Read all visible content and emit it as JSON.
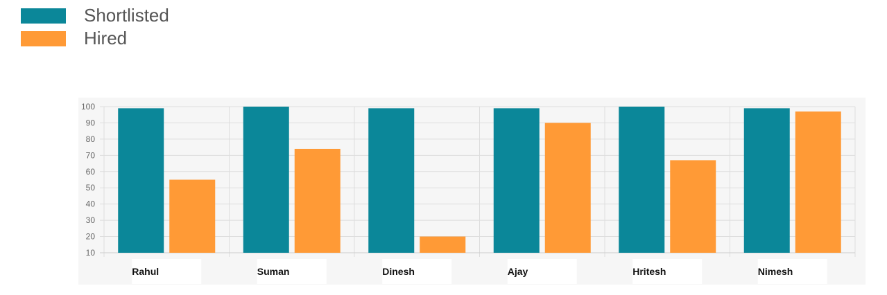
{
  "legend": [
    {
      "label": "Shortlisted",
      "color": "#0b8799"
    },
    {
      "label": "Hired",
      "color": "#ff9a36"
    }
  ],
  "chart_data": {
    "type": "bar",
    "categories": [
      "Rahul",
      "Suman",
      "Dinesh",
      "Ajay",
      "Hritesh",
      "Nimesh"
    ],
    "series": [
      {
        "name": "Shortlisted",
        "color": "#0b8799",
        "values": [
          99,
          100,
          99,
          99,
          100,
          99
        ]
      },
      {
        "name": "Hired",
        "color": "#ff9a36",
        "values": [
          55,
          74,
          20,
          90,
          67,
          97
        ]
      }
    ],
    "yticks": [
      10,
      20,
      30,
      40,
      50,
      60,
      70,
      80,
      90,
      100
    ],
    "ylim": [
      10,
      100
    ],
    "grid": true,
    "legend_position": "top-left",
    "title": "",
    "xlabel": "",
    "ylabel": ""
  }
}
